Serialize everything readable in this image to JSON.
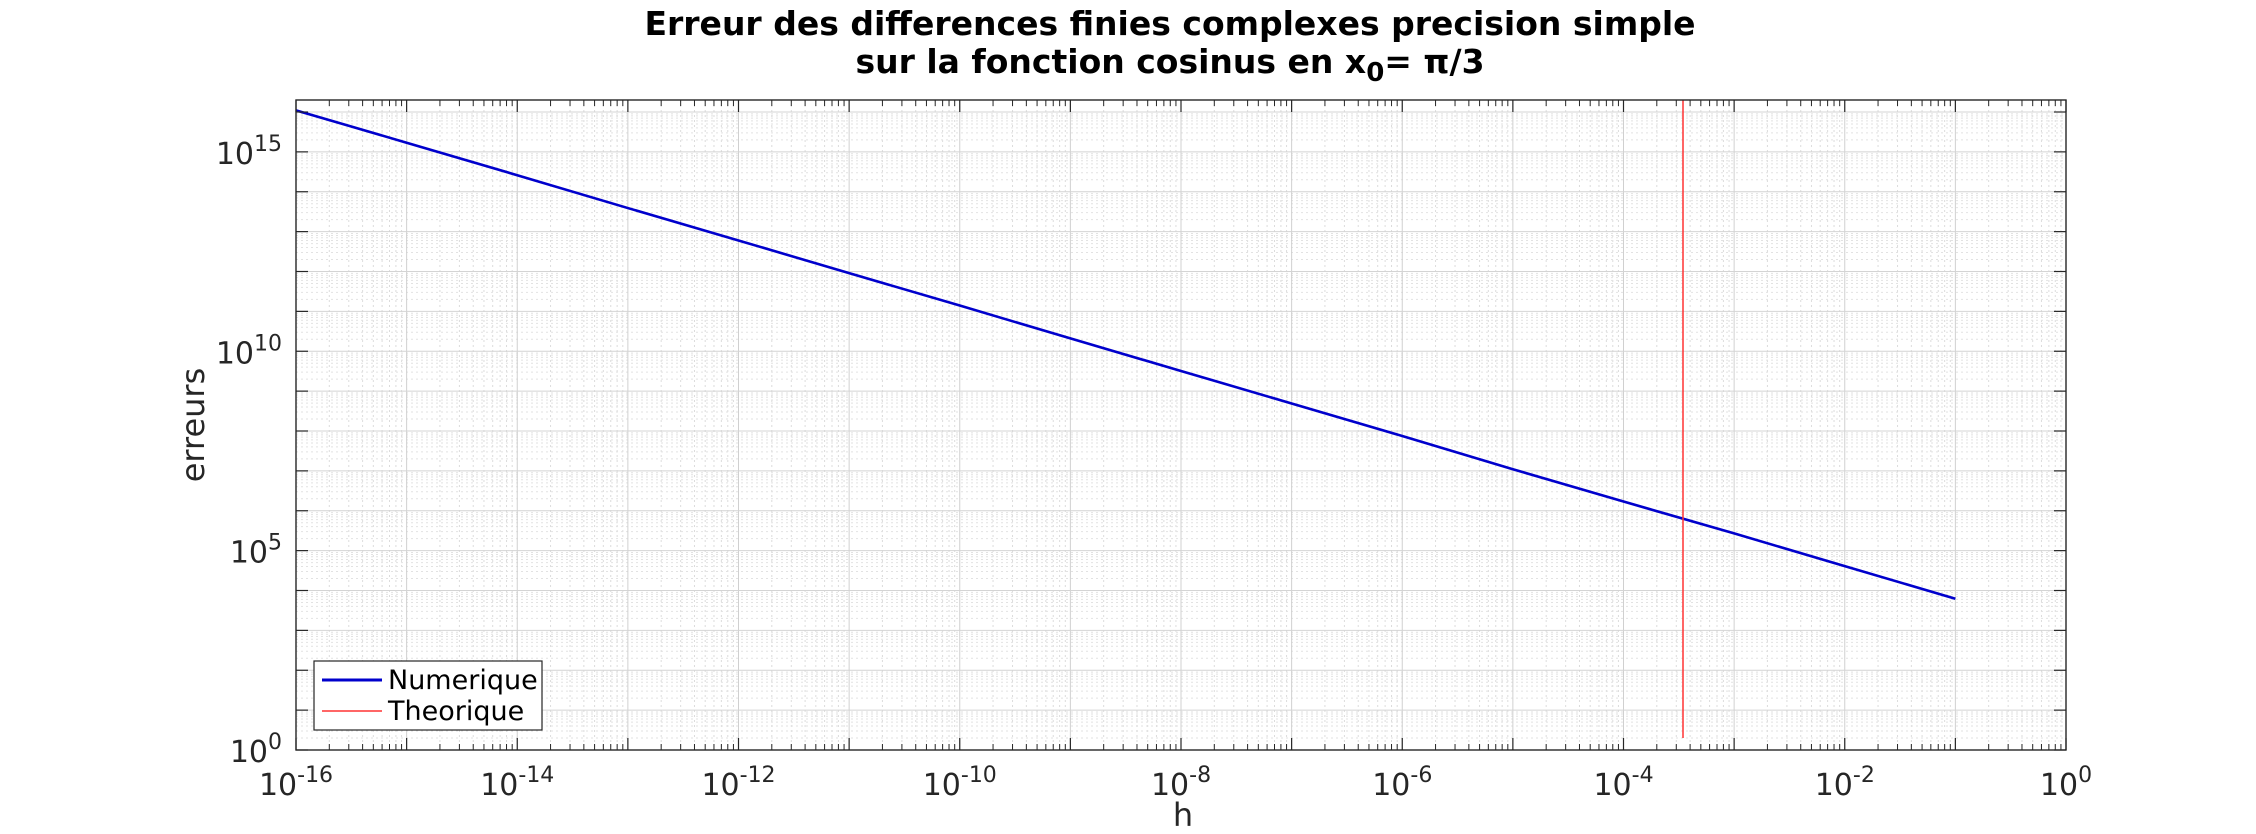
{
  "chart_data": {
    "type": "line",
    "title_line1": "Erreur des differences finies complexes precision simple",
    "title_line2_prefix": "sur la fonction cosinus en x",
    "title_line2_subscript": "0",
    "title_line2_suffix": "= π/3",
    "xlabel": "h",
    "ylabel": "erreurs",
    "xscale": "log",
    "yscale": "log",
    "xlim": [
      1e-16,
      1
    ],
    "ylim": [
      1,
      2e+16
    ],
    "grid": true,
    "minor_grid": true,
    "x_ticks": [
      {
        "base": "10",
        "exp": "-16",
        "value": 1e-16
      },
      {
        "base": "10",
        "exp": "-14",
        "value": 1e-14
      },
      {
        "base": "10",
        "exp": "-12",
        "value": 1e-12
      },
      {
        "base": "10",
        "exp": "-10",
        "value": 1e-10
      },
      {
        "base": "10",
        "exp": "-8",
        "value": 1e-08
      },
      {
        "base": "10",
        "exp": "-6",
        "value": 1e-06
      },
      {
        "base": "10",
        "exp": "-4",
        "value": 0.0001
      },
      {
        "base": "10",
        "exp": "-2",
        "value": 0.01
      },
      {
        "base": "10",
        "exp": "0",
        "value": 1
      }
    ],
    "y_ticks": [
      {
        "base": "10",
        "exp": "0",
        "value": 1
      },
      {
        "base": "10",
        "exp": "5",
        "value": 100000.0
      },
      {
        "base": "10",
        "exp": "10",
        "value": 10000000000.0
      },
      {
        "base": "10",
        "exp": "15",
        "value": 1000000000000000.0
      }
    ],
    "series": [
      {
        "name": "Numerique",
        "color": "#0000cc",
        "x": [
          1e-16,
          1e-15,
          1e-14,
          1e-13,
          1e-12,
          1e-11,
          1e-10,
          1e-09,
          1e-08,
          1e-07,
          1e-06,
          1e-05,
          0.0001,
          0.001,
          0.01,
          0.1
        ],
        "y": [
          1.1e+16,
          1700000000000000.0,
          260000000000000.0,
          39000000000000.0,
          6000000000000.0,
          910000000000.0,
          140000000000.0,
          21000000000.0,
          3200000000.0,
          490000000.0,
          75000000.0,
          11000000.0,
          1700000.0,
          270000.0,
          41000.0,
          6200.0
        ]
      },
      {
        "name": "Theorique",
        "color": "#ff3333",
        "x": [
          0.000345,
          0.000345
        ],
        "y": [
          2,
          2e+16
        ]
      }
    ],
    "legend": {
      "position": "bottom-left"
    }
  }
}
